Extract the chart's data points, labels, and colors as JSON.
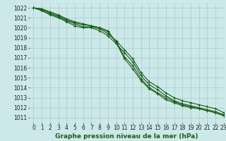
{
  "xlabel": "Graphe pression niveau de la mer (hPa)",
  "ylim": [
    1010.5,
    1022.5
  ],
  "xlim": [
    -0.5,
    23
  ],
  "yticks": [
    1011,
    1012,
    1013,
    1014,
    1015,
    1016,
    1017,
    1018,
    1019,
    1020,
    1021,
    1022
  ],
  "xticks": [
    0,
    1,
    2,
    3,
    4,
    5,
    6,
    7,
    8,
    9,
    10,
    11,
    12,
    13,
    14,
    15,
    16,
    17,
    18,
    19,
    20,
    21,
    22,
    23
  ],
  "background_color": "#cce8e8",
  "grid_color": "#aacccc",
  "line_color": "#1a5c1a",
  "series": [
    [
      1022.0,
      1021.8,
      1021.4,
      1021.1,
      1020.7,
      1020.4,
      1020.1,
      1020.1,
      1019.9,
      1019.4,
      1018.7,
      1017.8,
      1016.9,
      1015.5,
      1014.6,
      1014.1,
      1013.5,
      1013.0,
      1012.7,
      1012.5,
      1012.3,
      1012.1,
      1011.9,
      1011.5
    ],
    [
      1022.0,
      1021.7,
      1021.3,
      1021.0,
      1020.6,
      1020.2,
      1020.0,
      1020.0,
      1019.7,
      1019.2,
      1018.4,
      1017.5,
      1016.6,
      1015.2,
      1014.3,
      1013.8,
      1013.2,
      1012.7,
      1012.4,
      1012.2,
      1012.0,
      1011.8,
      1011.6,
      1011.3
    ],
    [
      1022.0,
      1021.9,
      1021.5,
      1021.2,
      1020.8,
      1020.5,
      1020.3,
      1020.2,
      1020.0,
      1019.6,
      1018.6,
      1017.1,
      1016.2,
      1014.9,
      1014.0,
      1013.5,
      1013.0,
      1012.6,
      1012.3,
      1012.1,
      1011.9,
      1011.7,
      1011.5,
      1011.2
    ],
    [
      1022.0,
      1021.9,
      1021.6,
      1021.3,
      1020.9,
      1020.6,
      1020.4,
      1020.2,
      1020.0,
      1019.7,
      1018.5,
      1016.9,
      1015.9,
      1014.7,
      1013.9,
      1013.4,
      1012.8,
      1012.5,
      1012.2,
      1012.0,
      1011.9,
      1011.7,
      1011.5,
      1011.2
    ]
  ],
  "marker": "+",
  "marker_size": 3.5,
  "line_width": 0.8,
  "fontsize_ticks": 5.5,
  "fontsize_xlabel": 6.5
}
